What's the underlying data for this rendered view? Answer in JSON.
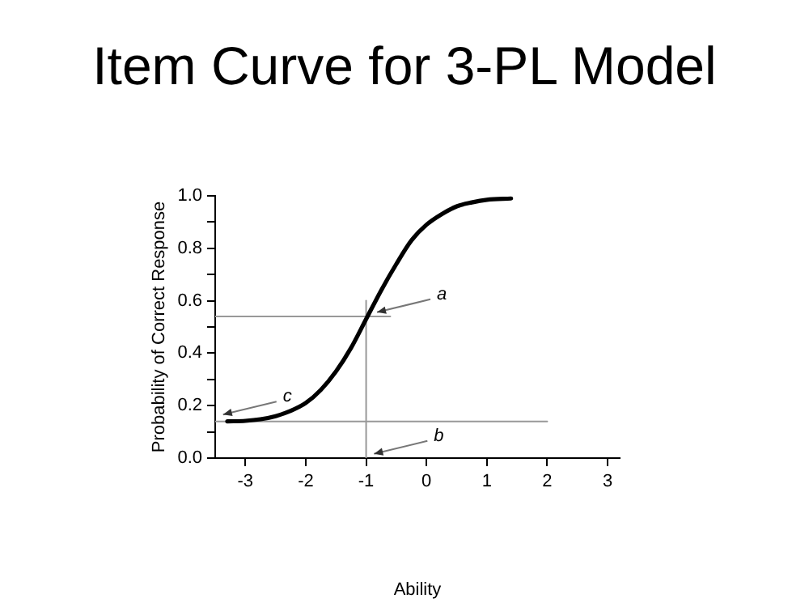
{
  "chart_data": {
    "type": "line",
    "title": "Item Curve for 3-PL Model",
    "xlabel": "Ability",
    "ylabel": "Probability of Correct Response",
    "xlim": [
      -3.5,
      3.2
    ],
    "xticks": [
      -3,
      -2,
      -1,
      0,
      1,
      2,
      3
    ],
    "ylim": [
      0,
      1
    ],
    "yticks": [
      {
        "value": 0,
        "label": "0.0"
      },
      {
        "value": 0.1,
        "label": null
      },
      0.2,
      {
        "value": 0.3,
        "label": null
      },
      0.4,
      {
        "value": 0.5,
        "label": null
      },
      0.6,
      {
        "value": 0.7,
        "label": null
      },
      0.8,
      {
        "value": 0.9,
        "label": null
      },
      {
        "value": 1,
        "label": "1.0"
      }
    ],
    "grid": false,
    "legend": false,
    "marker": "none",
    "line_style": "solid",
    "series": [
      {
        "color": "#000000",
        "x": [
          -3.3,
          -3,
          -2.75,
          -2.5,
          -2.25,
          -2,
          -1.75,
          -1.5,
          -1.25,
          -1,
          -0.75,
          -0.5,
          -0.25,
          0,
          0.25,
          0.5,
          0.75,
          1,
          1.4
        ],
        "values": [
          0.14,
          0.142,
          0.148,
          0.16,
          0.18,
          0.21,
          0.26,
          0.33,
          0.42,
          0.53,
          0.64,
          0.74,
          0.83,
          0.89,
          0.93,
          0.96,
          0.975,
          0.985,
          0.99
        ]
      },
      {
        "color": "#999999",
        "x": [
          -3.5,
          -0.6
        ],
        "values": [
          0.54,
          0.54
        ]
      },
      {
        "color": "#999999",
        "x": [
          -1,
          -1
        ],
        "values": [
          0,
          0.6
        ]
      },
      {
        "color": "#999999",
        "x": [
          -3.5,
          2
        ],
        "values": [
          0.14,
          0.14
        ]
      }
    ],
    "annotations": [
      {
        "text": "a",
        "x": -0.9,
        "y": 0.55
      },
      {
        "text": "c",
        "x": -3.45,
        "y": 0.16
      },
      {
        "text": "b",
        "x": -0.95,
        "y": 0.01
      }
    ]
  }
}
